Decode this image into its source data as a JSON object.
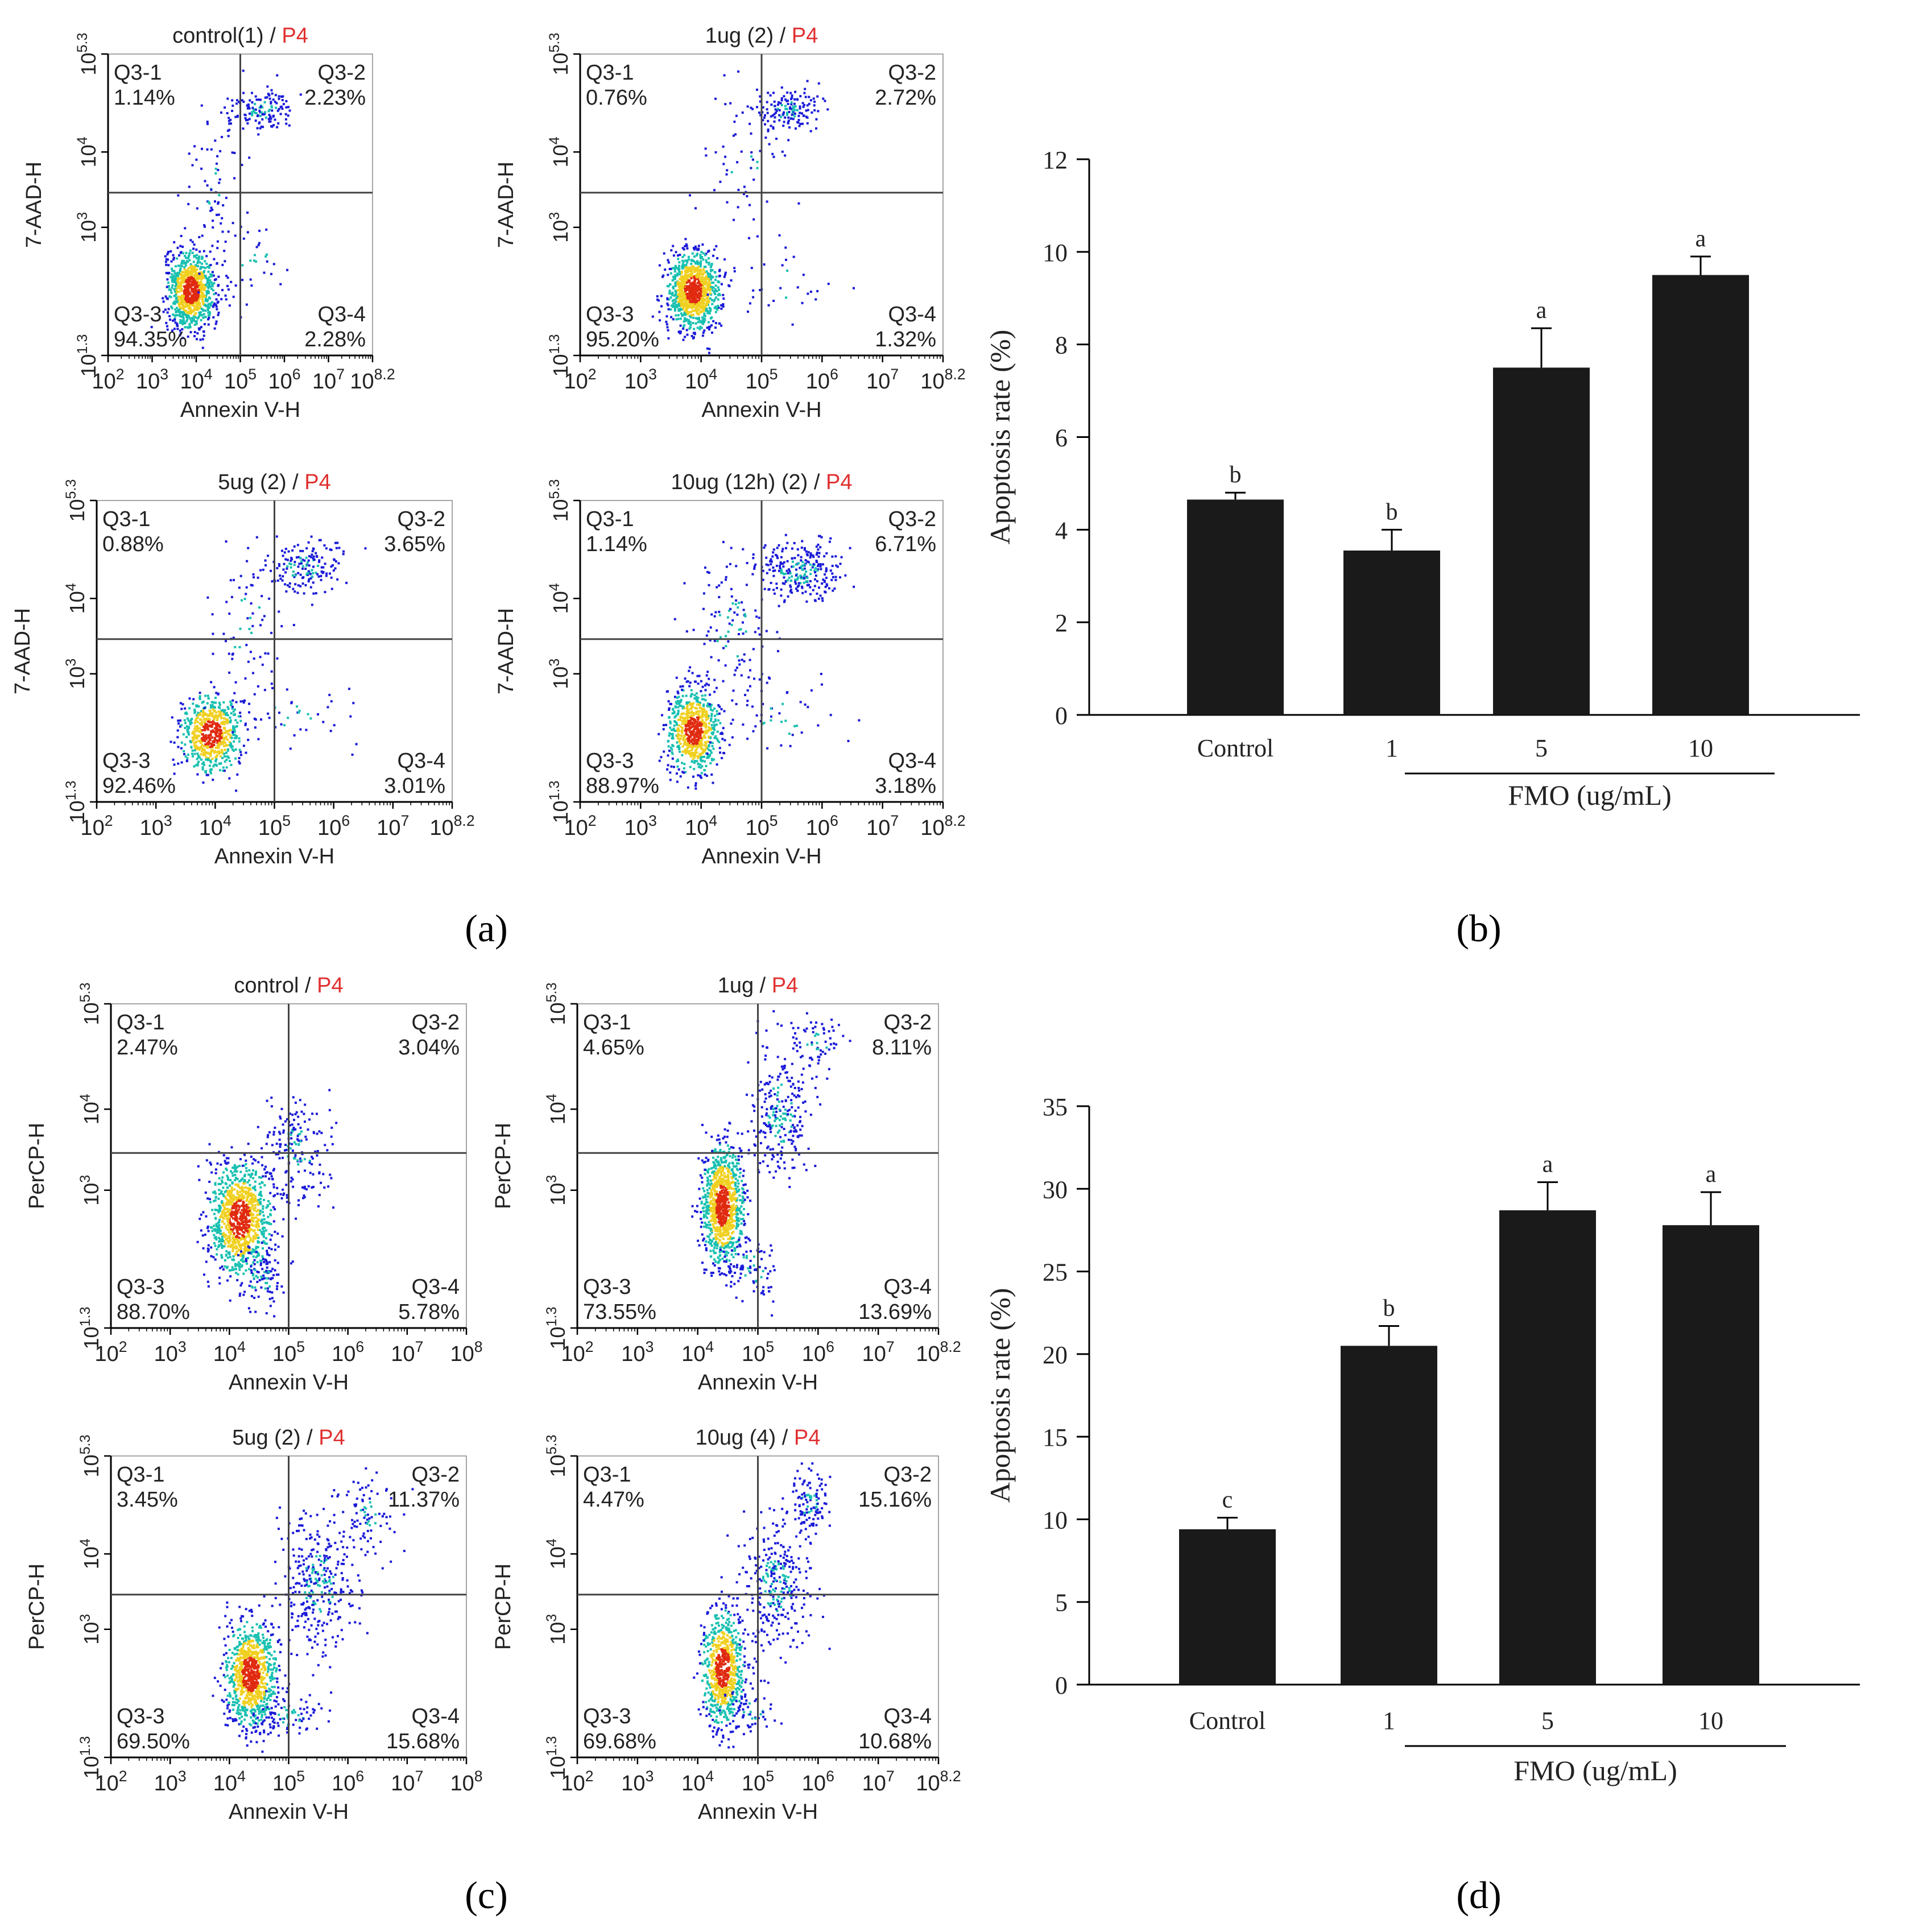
{
  "figure_labels": {
    "a": "(a)",
    "b": "(b)",
    "c": "(c)",
    "d": "(d)"
  },
  "colors": {
    "bar": "#1a1a1a",
    "axis": "#000000",
    "gate": "#444444",
    "gate_name": "#e03030",
    "dot_low": "#1a1ad8",
    "dot_mid": "#18c0b0",
    "dot_high": "#f0d020",
    "dot_peak": "#e02a10"
  },
  "chart_data": [
    {
      "id": "a1",
      "type": "scatter",
      "group": "a",
      "title": "control(1)",
      "gate": "P4",
      "xlabel": "Annexin V-H",
      "ylabel": "7-AAD-H",
      "xticks": [
        "10^2",
        "10^3",
        "10^4",
        "10^5",
        "10^6",
        "10^7",
        "10^8.2"
      ],
      "yticks": [
        "10^1.3",
        "10^3",
        "10^4",
        "10^5.3"
      ],
      "quadrants": [
        {
          "name": "Q3-1",
          "value": "1.14%"
        },
        {
          "name": "Q3-2",
          "value": "2.23%"
        },
        {
          "name": "Q3-3",
          "value": "94.35%"
        },
        {
          "name": "Q3-4",
          "value": "2.28%"
        }
      ]
    },
    {
      "id": "a2",
      "type": "scatter",
      "group": "a",
      "title": "1ug (2)",
      "gate": "P4",
      "xlabel": "Annexin V-H",
      "ylabel": "7-AAD-H",
      "xticks": [
        "10^2",
        "10^3",
        "10^4",
        "10^5",
        "10^6",
        "10^7",
        "10^8.2"
      ],
      "yticks": [
        "10^1.3",
        "10^3",
        "10^4",
        "10^5.3"
      ],
      "quadrants": [
        {
          "name": "Q3-1",
          "value": "0.76%"
        },
        {
          "name": "Q3-2",
          "value": "2.72%"
        },
        {
          "name": "Q3-3",
          "value": "95.20%"
        },
        {
          "name": "Q3-4",
          "value": "1.32%"
        }
      ]
    },
    {
      "id": "a3",
      "type": "scatter",
      "group": "a",
      "title": "5ug (2)",
      "gate": "P4",
      "xlabel": "Annexin V-H",
      "ylabel": "7-AAD-H",
      "xticks": [
        "10^2",
        "10^3",
        "10^4",
        "10^5",
        "10^6",
        "10^7",
        "10^8.2"
      ],
      "yticks": [
        "10^1.3",
        "10^3",
        "10^4",
        "10^5.3"
      ],
      "quadrants": [
        {
          "name": "Q3-1",
          "value": "0.88%"
        },
        {
          "name": "Q3-2",
          "value": "3.65%"
        },
        {
          "name": "Q3-3",
          "value": "92.46%"
        },
        {
          "name": "Q3-4",
          "value": "3.01%"
        }
      ]
    },
    {
      "id": "a4",
      "type": "scatter",
      "group": "a",
      "title": "10ug (12h) (2)",
      "gate": "P4",
      "xlabel": "Annexin V-H",
      "ylabel": "7-AAD-H",
      "xticks": [
        "10^2",
        "10^3",
        "10^4",
        "10^5",
        "10^6",
        "10^7",
        "10^8.2"
      ],
      "yticks": [
        "10^1.3",
        "10^3",
        "10^4",
        "10^5.3"
      ],
      "quadrants": [
        {
          "name": "Q3-1",
          "value": "1.14%"
        },
        {
          "name": "Q3-2",
          "value": "6.71%"
        },
        {
          "name": "Q3-3",
          "value": "88.97%"
        },
        {
          "name": "Q3-4",
          "value": "3.18%"
        }
      ]
    },
    {
      "id": "c1",
      "type": "scatter",
      "group": "c",
      "title": "control",
      "gate": "P4",
      "xlabel": "Annexin V-H",
      "ylabel": "PerCP-H",
      "xticks": [
        "10^2",
        "10^3",
        "10^4",
        "10^5",
        "10^6",
        "10^7",
        "10^8"
      ],
      "yticks": [
        "10^1.3",
        "10^3",
        "10^4",
        "10^5.3"
      ],
      "quadrants": [
        {
          "name": "Q3-1",
          "value": "2.47%"
        },
        {
          "name": "Q3-2",
          "value": "3.04%"
        },
        {
          "name": "Q3-3",
          "value": "88.70%"
        },
        {
          "name": "Q3-4",
          "value": "5.78%"
        }
      ]
    },
    {
      "id": "c2",
      "type": "scatter",
      "group": "c",
      "title": "1ug",
      "gate": "P4",
      "xlabel": "Annexin V-H",
      "ylabel": "PerCP-H",
      "xticks": [
        "10^2",
        "10^3",
        "10^4",
        "10^5",
        "10^6",
        "10^7",
        "10^8.2"
      ],
      "yticks": [
        "10^1.3",
        "10^3",
        "10^4",
        "10^5.3"
      ],
      "quadrants": [
        {
          "name": "Q3-1",
          "value": "4.65%"
        },
        {
          "name": "Q3-2",
          "value": "8.11%"
        },
        {
          "name": "Q3-3",
          "value": "73.55%"
        },
        {
          "name": "Q3-4",
          "value": "13.69%"
        }
      ]
    },
    {
      "id": "c3",
      "type": "scatter",
      "group": "c",
      "title": "5ug (2)",
      "gate": "P4",
      "xlabel": "Annexin V-H",
      "ylabel": "PerCP-H",
      "xticks": [
        "10^2",
        "10^3",
        "10^4",
        "10^5",
        "10^6",
        "10^7",
        "10^8"
      ],
      "yticks": [
        "10^1.3",
        "10^3",
        "10^4",
        "10^5.3"
      ],
      "quadrants": [
        {
          "name": "Q3-1",
          "value": "3.45%"
        },
        {
          "name": "Q3-2",
          "value": "11.37%"
        },
        {
          "name": "Q3-3",
          "value": "69.50%"
        },
        {
          "name": "Q3-4",
          "value": "15.68%"
        }
      ]
    },
    {
      "id": "c4",
      "type": "scatter",
      "group": "c",
      "title": "10ug (4)",
      "gate": "P4",
      "xlabel": "Annexin V-H",
      "ylabel": "PerCP-H",
      "xticks": [
        "10^2",
        "10^3",
        "10^4",
        "10^5",
        "10^6",
        "10^7",
        "10^8.2"
      ],
      "yticks": [
        "10^1.3",
        "10^3",
        "10^4",
        "10^5.3"
      ],
      "quadrants": [
        {
          "name": "Q3-1",
          "value": "4.47%"
        },
        {
          "name": "Q3-2",
          "value": "15.16%"
        },
        {
          "name": "Q3-3",
          "value": "69.68%"
        },
        {
          "name": "Q3-4",
          "value": "10.68%"
        }
      ]
    },
    {
      "id": "b",
      "type": "bar",
      "group": "b",
      "ylabel": "Apoptosis rate (%)",
      "xlabel": "FMO (ug/mL)",
      "categories": [
        "Control",
        "1",
        "5",
        "10"
      ],
      "values": [
        4.65,
        3.55,
        7.5,
        9.5
      ],
      "errors": [
        0.15,
        0.45,
        0.85,
        0.4
      ],
      "letters": [
        "b",
        "b",
        "a",
        "a"
      ],
      "ylim": [
        0,
        12
      ],
      "yticks": [
        0,
        2,
        4,
        6,
        8,
        10,
        12
      ]
    },
    {
      "id": "d",
      "type": "bar",
      "group": "d",
      "ylabel": "Apoptosis rate (%)",
      "xlabel": "FMO (ug/mL)",
      "categories": [
        "Control",
        "1",
        "5",
        "10"
      ],
      "values": [
        9.4,
        20.5,
        28.7,
        27.8
      ],
      "errors": [
        0.7,
        1.2,
        1.7,
        2.0
      ],
      "letters": [
        "c",
        "b",
        "a",
        "a"
      ],
      "ylim": [
        0,
        35
      ],
      "yticks": [
        0,
        5,
        10,
        15,
        20,
        25,
        30,
        35
      ]
    }
  ]
}
